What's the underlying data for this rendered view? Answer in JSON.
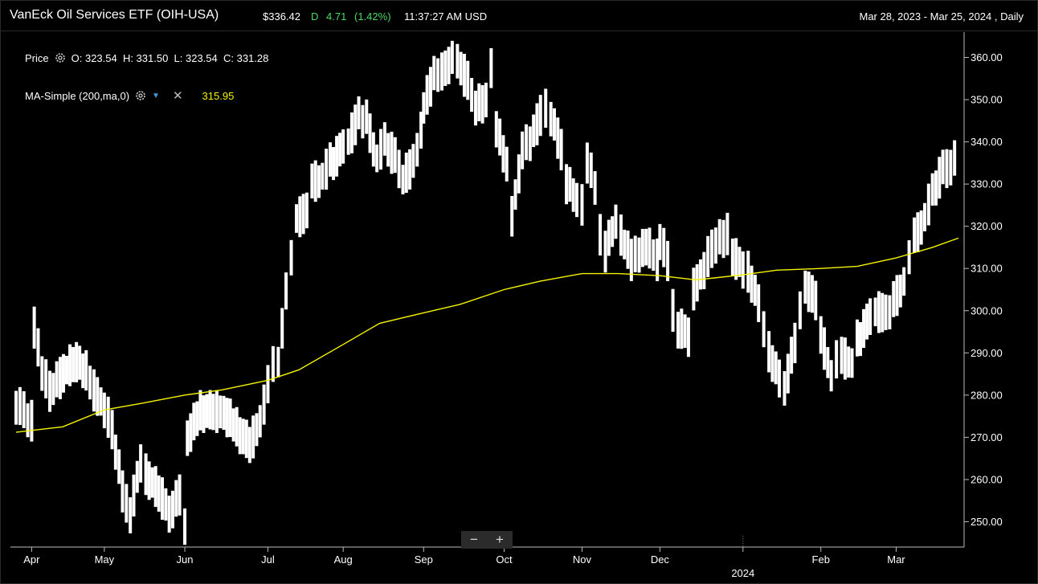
{
  "header": {
    "title": "VanEck Oil Services ETF (OIH-USA)",
    "price": "$336.42",
    "direction": "D",
    "change": "4.71",
    "change_pct": "(1.42%)",
    "time": "11:37:27 AM USD",
    "range": "Mar 28, 2023 - Mar 25, 2024 , Daily"
  },
  "legend": {
    "price_label": "Price",
    "ohlc": "O: 323.54  H: 331.50  L: 323.54  C: 331.28",
    "ma_label": "MA-Simple (200,ma,0)",
    "ma_value": "315.95"
  },
  "zoom": {
    "minus": "−",
    "plus": "+"
  },
  "colors": {
    "background": "#000000",
    "bars": "#ffffff",
    "ma": "#f4f400",
    "positive": "#4cd964"
  },
  "chart_data": {
    "type": "ohlc",
    "interval": "Daily",
    "ylim": [
      244,
      366
    ],
    "y_ticks": [
      "250.00",
      "260.00",
      "270.00",
      "280.00",
      "290.00",
      "300.00",
      "310.00",
      "320.00",
      "330.00",
      "340.00",
      "350.00",
      "360.00"
    ],
    "x_ticks": [
      {
        "label": "Apr",
        "date": "2023-04-03"
      },
      {
        "label": "May",
        "date": "2023-05-01"
      },
      {
        "label": "Jun",
        "date": "2023-06-01"
      },
      {
        "label": "Jul",
        "date": "2023-07-03"
      },
      {
        "label": "Aug",
        "date": "2023-08-01"
      },
      {
        "label": "Sep",
        "date": "2023-09-01"
      },
      {
        "label": "Oct",
        "date": "2023-10-02"
      },
      {
        "label": "Nov",
        "date": "2023-11-01"
      },
      {
        "label": "Dec",
        "date": "2023-12-01"
      },
      {
        "label": "",
        "date": "2024-01-02"
      },
      {
        "label": "Feb",
        "date": "2024-02-01"
      },
      {
        "label": "Mar",
        "date": "2024-03-01"
      }
    ],
    "year_label": "2024",
    "x_range": [
      "2023-03-28",
      "2024-03-25"
    ],
    "series": [
      {
        "name": "Price",
        "points": [
          [
            "2023-03-28",
            278
          ],
          [
            "2023-04-03",
            274
          ],
          [
            "2023-04-04",
            296
          ],
          [
            "2023-04-07",
            286
          ],
          [
            "2023-04-10",
            281
          ],
          [
            "2023-04-14",
            284
          ],
          [
            "2023-04-19",
            288
          ],
          [
            "2023-04-24",
            286
          ],
          [
            "2023-04-27",
            281
          ],
          [
            "2023-05-01",
            277
          ],
          [
            "2023-05-04",
            272
          ],
          [
            "2023-05-08",
            257
          ],
          [
            "2023-05-11",
            252
          ],
          [
            "2023-05-15",
            264
          ],
          [
            "2023-05-17",
            261
          ],
          [
            "2023-05-22",
            257
          ],
          [
            "2023-05-26",
            252
          ],
          [
            "2023-05-30",
            256
          ],
          [
            "2023-06-01",
            249
          ],
          [
            "2023-06-02",
            270
          ],
          [
            "2023-06-07",
            276
          ],
          [
            "2023-06-12",
            276
          ],
          [
            "2023-06-16",
            276
          ],
          [
            "2023-06-21",
            272
          ],
          [
            "2023-06-26",
            268
          ],
          [
            "2023-06-30",
            274
          ],
          [
            "2023-07-03",
            282
          ],
          [
            "2023-07-05",
            287
          ],
          [
            "2023-07-07",
            288
          ],
          [
            "2023-07-10",
            304
          ],
          [
            "2023-07-12",
            312
          ],
          [
            "2023-07-14",
            322
          ],
          [
            "2023-07-18",
            323
          ],
          [
            "2023-07-20",
            330
          ],
          [
            "2023-07-24",
            332
          ],
          [
            "2023-07-27",
            335
          ],
          [
            "2023-08-01",
            338
          ],
          [
            "2023-08-03",
            340
          ],
          [
            "2023-08-07",
            346
          ],
          [
            "2023-08-10",
            345
          ],
          [
            "2023-08-14",
            336
          ],
          [
            "2023-08-17",
            340
          ],
          [
            "2023-08-21",
            336
          ],
          [
            "2023-08-24",
            331
          ],
          [
            "2023-08-28",
            335
          ],
          [
            "2023-08-31",
            342
          ],
          [
            "2023-09-01",
            348
          ],
          [
            "2023-09-05",
            356
          ],
          [
            "2023-09-08",
            356
          ],
          [
            "2023-09-12",
            360
          ],
          [
            "2023-09-14",
            359
          ],
          [
            "2023-09-18",
            354
          ],
          [
            "2023-09-21",
            348
          ],
          [
            "2023-09-25",
            350
          ],
          [
            "2023-09-27",
            357
          ],
          [
            "2023-09-29",
            343
          ],
          [
            "2023-10-03",
            335
          ],
          [
            "2023-10-05",
            322
          ],
          [
            "2023-10-09",
            338
          ],
          [
            "2023-10-12",
            340
          ],
          [
            "2023-10-16",
            346
          ],
          [
            "2023-10-18",
            348
          ],
          [
            "2023-10-20",
            346
          ],
          [
            "2023-10-24",
            338
          ],
          [
            "2023-10-26",
            330
          ],
          [
            "2023-10-30",
            327
          ],
          [
            "2023-11-01",
            325
          ],
          [
            "2023-11-03",
            335
          ],
          [
            "2023-11-06",
            330
          ],
          [
            "2023-11-08",
            318
          ],
          [
            "2023-11-10",
            314
          ],
          [
            "2023-11-14",
            322
          ],
          [
            "2023-11-16",
            318
          ],
          [
            "2023-11-20",
            312
          ],
          [
            "2023-11-23",
            314
          ],
          [
            "2023-11-27",
            315
          ],
          [
            "2023-11-30",
            312
          ],
          [
            "2023-12-01",
            317
          ],
          [
            "2023-12-04",
            312
          ],
          [
            "2023-12-06",
            300
          ],
          [
            "2023-12-08",
            296
          ],
          [
            "2023-12-12",
            294
          ],
          [
            "2023-12-14",
            305
          ],
          [
            "2023-12-18",
            310
          ],
          [
            "2023-12-21",
            315
          ],
          [
            "2023-12-27",
            318
          ],
          [
            "2023-12-29",
            313
          ],
          [
            "2024-01-02",
            310
          ],
          [
            "2024-01-04",
            309
          ],
          [
            "2024-01-08",
            302
          ],
          [
            "2024-01-10",
            296
          ],
          [
            "2024-01-12",
            290
          ],
          [
            "2024-01-16",
            284
          ],
          [
            "2024-01-18",
            282
          ],
          [
            "2024-01-22",
            292
          ],
          [
            "2024-01-24",
            300
          ],
          [
            "2024-01-26",
            306
          ],
          [
            "2024-01-30",
            302
          ],
          [
            "2024-02-01",
            294
          ],
          [
            "2024-02-05",
            285
          ],
          [
            "2024-02-07",
            288
          ],
          [
            "2024-02-09",
            289
          ],
          [
            "2024-02-13",
            288
          ],
          [
            "2024-02-15",
            293
          ],
          [
            "2024-02-20",
            298
          ],
          [
            "2024-02-22",
            300
          ],
          [
            "2024-02-26",
            299
          ],
          [
            "2024-02-29",
            302
          ],
          [
            "2024-03-04",
            307
          ],
          [
            "2024-03-06",
            312
          ],
          [
            "2024-03-08",
            317
          ],
          [
            "2024-03-12",
            322
          ],
          [
            "2024-03-15",
            328
          ],
          [
            "2024-03-19",
            333
          ],
          [
            "2024-03-25",
            336
          ]
        ]
      },
      {
        "name": "MA-Simple (200,ma,0)",
        "points": [
          [
            "2023-03-28",
            271.2
          ],
          [
            "2023-04-15",
            272.5
          ],
          [
            "2023-05-01",
            276.5
          ],
          [
            "2023-05-15",
            278
          ],
          [
            "2023-06-01",
            280
          ],
          [
            "2023-06-15",
            281.2
          ],
          [
            "2023-07-03",
            283.5
          ],
          [
            "2023-07-15",
            286
          ],
          [
            "2023-08-01",
            292
          ],
          [
            "2023-08-15",
            297
          ],
          [
            "2023-09-01",
            299.5
          ],
          [
            "2023-09-15",
            301.5
          ],
          [
            "2023-10-02",
            305
          ],
          [
            "2023-10-16",
            307
          ],
          [
            "2023-11-01",
            308.8
          ],
          [
            "2023-11-15",
            308.8
          ],
          [
            "2023-12-01",
            308.3
          ],
          [
            "2023-12-15",
            307.3
          ],
          [
            "2024-01-02",
            308.5
          ],
          [
            "2024-01-15",
            309.6
          ],
          [
            "2024-02-01",
            310
          ],
          [
            "2024-02-15",
            310.5
          ],
          [
            "2024-03-01",
            312.5
          ],
          [
            "2024-03-15",
            315
          ],
          [
            "2024-03-25",
            317.2
          ]
        ]
      }
    ]
  }
}
